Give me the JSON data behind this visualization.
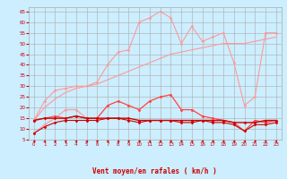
{
  "x": [
    0,
    1,
    2,
    3,
    4,
    5,
    6,
    7,
    8,
    9,
    10,
    11,
    12,
    13,
    14,
    15,
    16,
    17,
    18,
    19,
    20,
    21,
    22,
    23
  ],
  "series": [
    {
      "label": "rafales_max",
      "color": "#ff9999",
      "lw": 0.8,
      "marker": "D",
      "ms": 1.5,
      "y": [
        14,
        23,
        28,
        29,
        30,
        30,
        32,
        40,
        46,
        47,
        60,
        62,
        65,
        62,
        50,
        58,
        51,
        53,
        55,
        41,
        21,
        25,
        55,
        55
      ]
    },
    {
      "label": "rafales_trend",
      "color": "#ff9999",
      "lw": 0.8,
      "marker": null,
      "ms": 0,
      "y": [
        14,
        20,
        24,
        27,
        29,
        30,
        31,
        33,
        35,
        37,
        39,
        41,
        43,
        45,
        46,
        47,
        48,
        49,
        50,
        50,
        50,
        51,
        52,
        53
      ]
    },
    {
      "label": "vent_max_pink",
      "color": "#ff9999",
      "lw": 0.8,
      "marker": "D",
      "ms": 1.5,
      "y": [
        8,
        12,
        15,
        19,
        19,
        15,
        15,
        21,
        23,
        21,
        19,
        23,
        25,
        26,
        19,
        19,
        16,
        15,
        14,
        13,
        9,
        14,
        13,
        14
      ]
    },
    {
      "label": "vent_moyen_red",
      "color": "#ff4444",
      "lw": 0.8,
      "marker": "D",
      "ms": 1.5,
      "y": [
        14,
        15,
        16,
        15,
        16,
        15,
        15,
        21,
        23,
        21,
        19,
        23,
        25,
        26,
        19,
        19,
        16,
        15,
        14,
        13,
        9,
        14,
        13,
        14
      ]
    },
    {
      "label": "vent_moyen_dark1",
      "color": "#cc0000",
      "lw": 1.0,
      "marker": "D",
      "ms": 1.5,
      "y": [
        14,
        15,
        15,
        15,
        16,
        15,
        15,
        15,
        15,
        15,
        14,
        14,
        14,
        14,
        14,
        14,
        14,
        14,
        14,
        13,
        13,
        13,
        14,
        14
      ]
    },
    {
      "label": "vent_moyen_dark2",
      "color": "#cc0000",
      "lw": 0.8,
      "marker": "D",
      "ms": 1.5,
      "y": [
        8,
        11,
        13,
        14,
        14,
        14,
        14,
        15,
        15,
        14,
        13,
        14,
        14,
        14,
        13,
        13,
        14,
        13,
        13,
        12,
        9,
        12,
        12,
        13
      ]
    }
  ],
  "arrow_angles": [
    90,
    80,
    100,
    110,
    120,
    90,
    100,
    95,
    85,
    100,
    90,
    80,
    85,
    90,
    100,
    110,
    100,
    90,
    85,
    90,
    80,
    100,
    120,
    130
  ],
  "xlabel": "Vent moyen/en rafales ( km/h )",
  "ylim": [
    5,
    67
  ],
  "yticks": [
    5,
    10,
    15,
    20,
    25,
    30,
    35,
    40,
    45,
    50,
    55,
    60,
    65
  ],
  "xlim": [
    -0.5,
    23.5
  ],
  "xticks": [
    0,
    1,
    2,
    3,
    4,
    5,
    6,
    7,
    8,
    9,
    10,
    11,
    12,
    13,
    14,
    15,
    16,
    17,
    18,
    19,
    20,
    21,
    22,
    23
  ],
  "bg_color": "#cceeff",
  "grid_color": "#aaaaaa",
  "label_color": "#cc0000"
}
